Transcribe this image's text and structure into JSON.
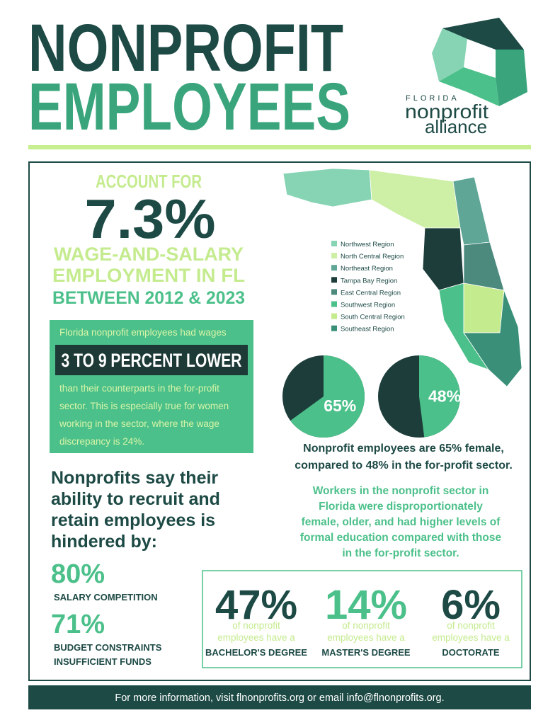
{
  "header": {
    "title_line1": "NONPROFIT",
    "title_line2": "EMPLOYEES",
    "logo": {
      "line1": "FLORIDA",
      "line2": "nonprofit",
      "line3": "alliance"
    }
  },
  "headline": {
    "lead": "ACCOUNT FOR",
    "stat": "7.3%",
    "line1": "WAGE-AND-SALARY",
    "line2": "EMPLOYMENT IN FL",
    "line3": "BETWEEN 2012 & 2023"
  },
  "wages": {
    "intro": "Florida nonprofit employees had wages",
    "highlight": "3 TO 9 PERCENT LOWER",
    "body": [
      "than their counterparts in the for-profit",
      "sector.  This is especially true for women",
      "working in the sector, where the wage",
      "discrepancy is 24%."
    ]
  },
  "map": {
    "legend": [
      {
        "label": "Northwest Region",
        "color": "#86d4b4"
      },
      {
        "label": "North Central Region",
        "color": "#cdefa6"
      },
      {
        "label": "Northeast Region",
        "color": "#5fa697"
      },
      {
        "label": "Tampa Bay Region",
        "color": "#1d3d3a"
      },
      {
        "label": "East Central Region",
        "color": "#4b8a7d"
      },
      {
        "label": "Southwest Region",
        "color": "#4cc08a"
      },
      {
        "label": "South Central Region",
        "color": "#c5eb8f"
      },
      {
        "label": "Southeast Region",
        "color": "#3a8f78"
      }
    ]
  },
  "gender": {
    "pies": [
      {
        "value": 65,
        "label": "65%"
      },
      {
        "value": 48,
        "label": "48%"
      }
    ],
    "caption": [
      "Nonprofit employees are 65% female,",
      "compared to 48% in the for-profit sector."
    ]
  },
  "workers": [
    "Workers in the nonprofit sector in",
    "Florida were disproportionately",
    "female, older, and had higher levels of",
    "formal education compared with those",
    "in the for-profit sector."
  ],
  "recruit": {
    "heading": [
      "Nonprofits say their",
      "ability to recruit and",
      "retain employees is",
      "hindered by:"
    ],
    "items": [
      {
        "stat": "80%",
        "lines": [
          "SALARY COMPETITION"
        ]
      },
      {
        "stat": "71%",
        "lines": [
          "BUDGET CONSTRAINTS",
          "INSUFFICIENT FUNDS"
        ]
      }
    ]
  },
  "education": [
    {
      "stat": "47%",
      "line1": "of nonprofit",
      "line2": "employees have a",
      "degree": "BACHELOR'S DEGREE"
    },
    {
      "stat": "14%",
      "line1": "of nonprofit",
      "line2": "employees have a",
      "degree": "MASTER'S DEGREE"
    },
    {
      "stat": "6%",
      "line1": "of nonprofit",
      "line2": "employees have a",
      "degree": "DOCTORATE"
    }
  ],
  "footer": "For more information, visit flnonprofits.org or email info@flnonprofits.org."
}
